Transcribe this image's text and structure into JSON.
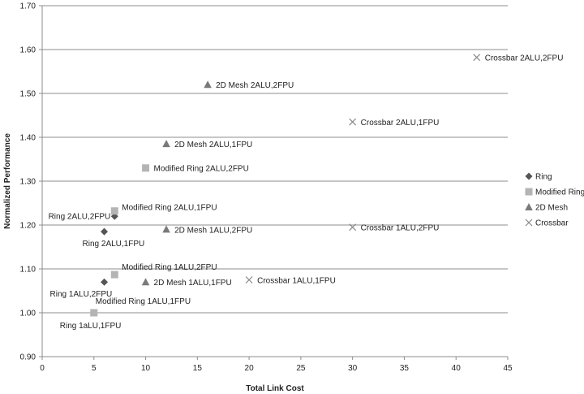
{
  "chart_data": {
    "type": "scatter",
    "title": "",
    "xlabel": "Total Link Cost",
    "ylabel": "Normalized Performance",
    "xlim": [
      0,
      45
    ],
    "ylim": [
      0.9,
      1.7
    ],
    "xticks": [
      "0",
      "5",
      "10",
      "15",
      "20",
      "25",
      "30",
      "35",
      "40",
      "45"
    ],
    "yticks": [
      "0.90",
      "1.00",
      "1.10",
      "1.20",
      "1.30",
      "1.40",
      "1.50",
      "1.60",
      "1.70"
    ],
    "grid": "horizontal",
    "legend_position": "right",
    "series": [
      {
        "name": "Ring",
        "marker": "diamond",
        "color": "#555555",
        "points": [
          {
            "x": 6,
            "y": 1.07,
            "label": "Ring 1ALU,2FPU"
          },
          {
            "x": 6,
            "y": 1.185,
            "label": "Ring 2ALU,1FPU"
          },
          {
            "x": 7,
            "y": 1.22,
            "label": "Ring 2ALU,2FPU"
          }
        ]
      },
      {
        "name": "Modified Ring",
        "marker": "square",
        "color": "#b4b4b4",
        "points": [
          {
            "x": 5,
            "y": 1.0,
            "label": "Ring 1aLU,1FPU"
          },
          {
            "x": 7,
            "y": 1.087,
            "label": "Modified Ring 1ALU,2FPU"
          },
          {
            "x": 7,
            "y": 1.232,
            "label": "Modified Ring 2ALU,1FPU"
          },
          {
            "x": 10,
            "y": 1.33,
            "label": "Modified Ring 2ALU,2FPU"
          }
        ]
      },
      {
        "name": "2D Mesh",
        "marker": "triangle",
        "color": "#7a7a7a",
        "points": [
          {
            "x": 10,
            "y": 1.07,
            "label": "2D Mesh 1ALU,1FPU"
          },
          {
            "x": 12,
            "y": 1.19,
            "label": "2D Mesh 1ALU,2FPU"
          },
          {
            "x": 12,
            "y": 1.385,
            "label": "2D Mesh 2ALU,1FPU"
          },
          {
            "x": 16,
            "y": 1.52,
            "label": "2D Mesh 2ALU,2FPU"
          }
        ]
      },
      {
        "name": "Crossbar",
        "marker": "x",
        "color": "#888888",
        "points": [
          {
            "x": 20,
            "y": 1.075,
            "label": "Crossbar 1ALU,1FPU"
          },
          {
            "x": 30,
            "y": 1.195,
            "label": "Crossbar 1ALU,2FPU"
          },
          {
            "x": 30,
            "y": 1.435,
            "label": "Crossbar 2ALU,1FPU"
          },
          {
            "x": 42,
            "y": 1.582,
            "label": "Crossbar 2ALU,2FPU"
          }
        ]
      }
    ],
    "extra_labels": [
      {
        "text": "Modified Ring 1ALU,1FPU",
        "x": 5,
        "y": 1.0
      }
    ]
  }
}
